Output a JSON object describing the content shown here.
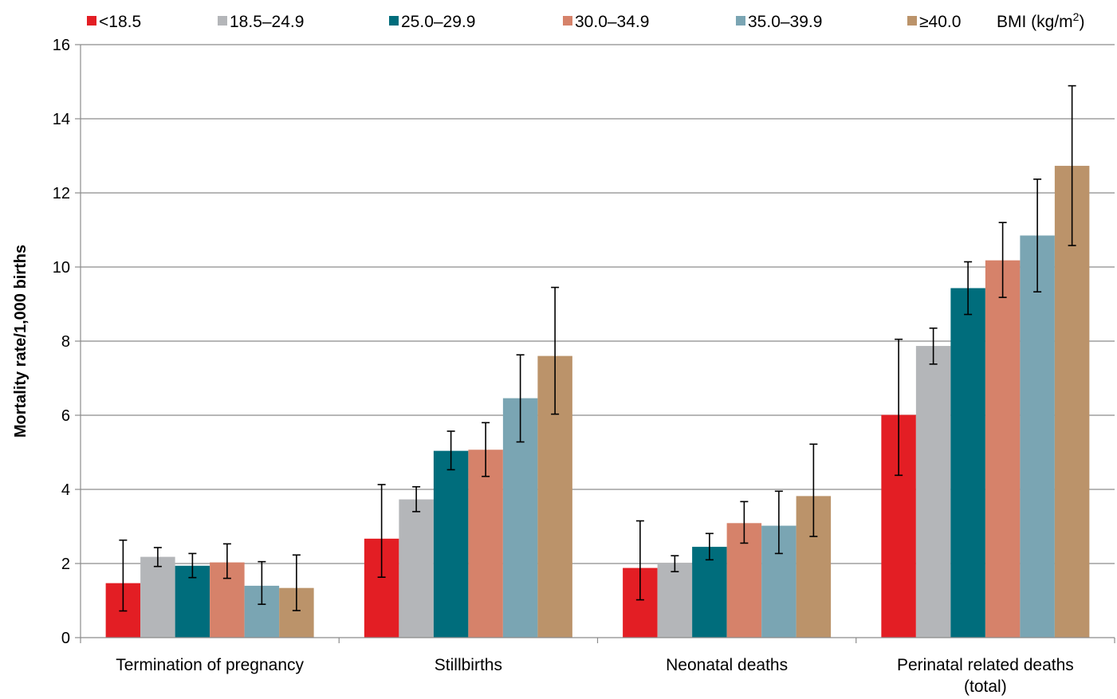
{
  "chart_data": {
    "type": "bar",
    "title": "",
    "xlabel": "",
    "ylabel": "Mortality rate/1,000 births",
    "ylim": [
      0,
      16
    ],
    "yticks": [
      0,
      2,
      4,
      6,
      8,
      10,
      12,
      14,
      16
    ],
    "grid": true,
    "legend_position": "top",
    "legend_title": "BMI (kg/m²)",
    "legend_title_base": "BMI (kg/m",
    "legend_title_sup": "2",
    "legend_title_close": ")",
    "categories": [
      "Termination of pregnancy",
      "Stillbirths",
      "Neonatal deaths",
      "Perinatal related deaths (total)"
    ],
    "category_label_lines": [
      [
        "Termination of pregnancy"
      ],
      [
        "Stillbirths"
      ],
      [
        "Neonatal deaths"
      ],
      [
        "Perinatal related deaths",
        "(total)"
      ]
    ],
    "series": [
      {
        "name": "<18.5",
        "color": "#e31e24",
        "values": [
          1.47,
          2.67,
          1.88,
          6.01
        ],
        "ci_low": [
          0.72,
          1.63,
          1.02,
          4.38
        ],
        "ci_high": [
          2.63,
          4.13,
          3.15,
          8.05
        ]
      },
      {
        "name": "18.5–24.9",
        "color": "#b4b6b9",
        "values": [
          2.18,
          3.73,
          2.0,
          7.87
        ],
        "ci_low": [
          1.92,
          3.4,
          1.78,
          7.38
        ],
        "ci_high": [
          2.43,
          4.07,
          2.21,
          8.35
        ]
      },
      {
        "name": "25.0–29.9",
        "color": "#006d7c",
        "values": [
          1.94,
          5.04,
          2.45,
          9.43
        ],
        "ci_low": [
          1.62,
          4.53,
          2.1,
          8.72
        ],
        "ci_high": [
          2.27,
          5.57,
          2.81,
          10.14
        ]
      },
      {
        "name": "30.0–34.9",
        "color": "#d6826a",
        "values": [
          2.03,
          5.07,
          3.09,
          10.18
        ],
        "ci_low": [
          1.6,
          4.35,
          2.55,
          9.18
        ],
        "ci_high": [
          2.53,
          5.8,
          3.67,
          11.2
        ]
      },
      {
        "name": "35.0–39.9",
        "color": "#7aa5b3",
        "values": [
          1.4,
          6.46,
          3.02,
          10.85
        ],
        "ci_low": [
          0.9,
          5.28,
          2.27,
          9.33
        ],
        "ci_high": [
          2.05,
          7.63,
          3.95,
          12.37
        ]
      },
      {
        "name": "≥40.0",
        "color": "#bb936a",
        "values": [
          1.34,
          7.6,
          3.82,
          12.73
        ],
        "ci_low": [
          0.73,
          6.03,
          2.73,
          10.58
        ],
        "ci_high": [
          2.23,
          9.45,
          5.22,
          14.89
        ]
      }
    ]
  }
}
